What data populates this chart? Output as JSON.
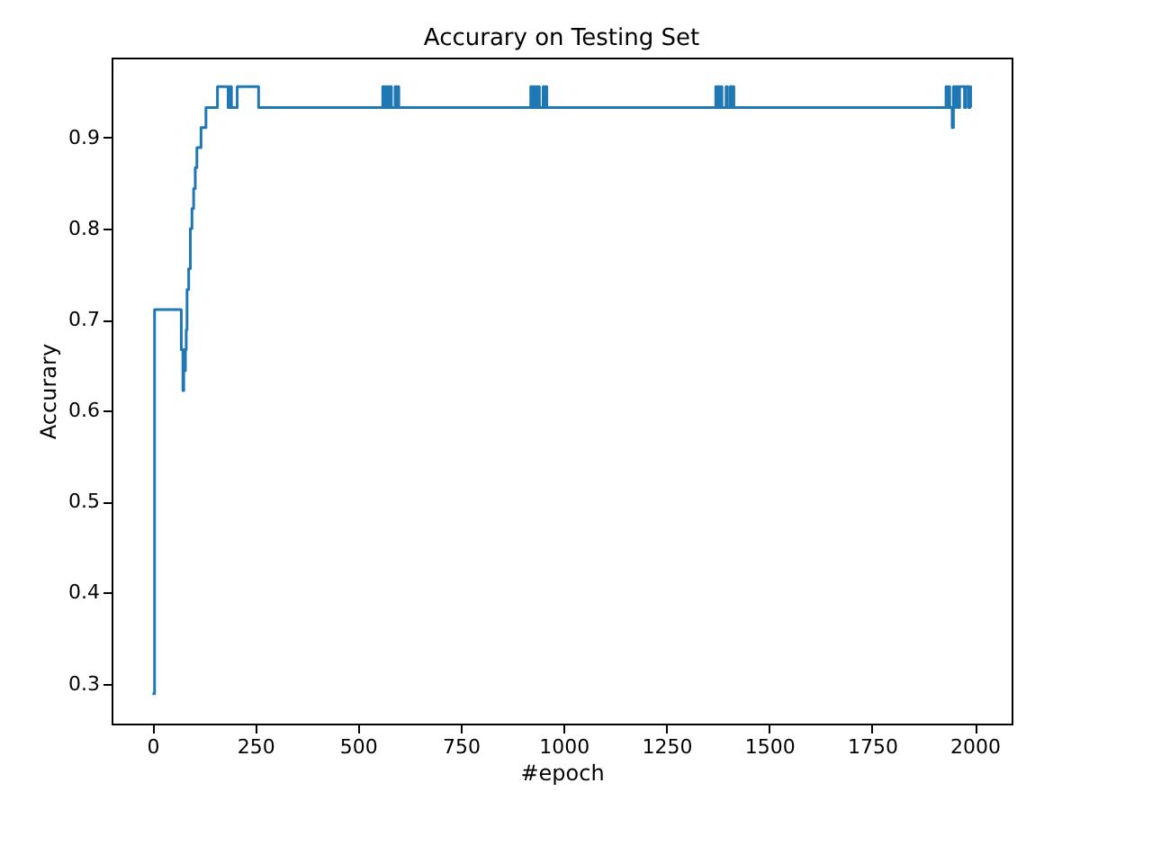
{
  "chart_data": {
    "type": "step",
    "title": "Accurary on Testing Set",
    "xlabel": "#epoch",
    "ylabel": "Accurary",
    "xlim": [
      -99.5,
      2089.5
    ],
    "ylim": [
      0.256,
      0.988
    ],
    "xticks": [
      0,
      250,
      500,
      750,
      1000,
      1250,
      1500,
      1750,
      2000
    ],
    "yticks": [
      0.3,
      0.4,
      0.5,
      0.6,
      0.7,
      0.8,
      0.9
    ],
    "grid": false,
    "series": [
      {
        "color": "#1f77b4",
        "x": [
          0,
          5,
          70,
          74,
          76,
          78,
          80,
          82,
          84,
          88,
          92,
          96,
          100,
          104,
          108,
          112,
          118,
          130,
          140,
          153,
          158,
          184,
          188,
          192,
          206,
          258,
          560,
          563,
          566,
          569,
          572,
          575,
          578,
          581,
          590,
          593,
          596,
          599,
          920,
          923,
          926,
          929,
          932,
          935,
          938,
          941,
          950,
          953,
          956,
          959,
          1370,
          1373,
          1376,
          1379,
          1382,
          1385,
          1395,
          1398,
          1405,
          1408,
          1411,
          1414,
          1930,
          1933,
          1936,
          1939,
          1945,
          1948,
          1951,
          1954,
          1960,
          1963,
          1975,
          1978,
          1985,
          1988,
          1990
        ],
        "values": [
          0.289,
          0.711,
          0.667,
          0.622,
          0.667,
          0.644,
          0.667,
          0.689,
          0.733,
          0.756,
          0.8,
          0.822,
          0.844,
          0.867,
          0.889,
          0.889,
          0.911,
          0.933,
          0.933,
          0.933,
          0.956,
          0.933,
          0.956,
          0.933,
          0.956,
          0.933,
          0.956,
          0.933,
          0.956,
          0.933,
          0.956,
          0.933,
          0.956,
          0.933,
          0.956,
          0.933,
          0.956,
          0.933,
          0.956,
          0.933,
          0.956,
          0.933,
          0.956,
          0.933,
          0.956,
          0.933,
          0.956,
          0.933,
          0.956,
          0.933,
          0.956,
          0.933,
          0.956,
          0.933,
          0.956,
          0.933,
          0.956,
          0.933,
          0.956,
          0.933,
          0.956,
          0.933,
          0.956,
          0.933,
          0.956,
          0.933,
          0.911,
          0.956,
          0.933,
          0.956,
          0.933,
          0.956,
          0.933,
          0.956,
          0.933,
          0.956,
          0.933
        ]
      }
    ]
  }
}
